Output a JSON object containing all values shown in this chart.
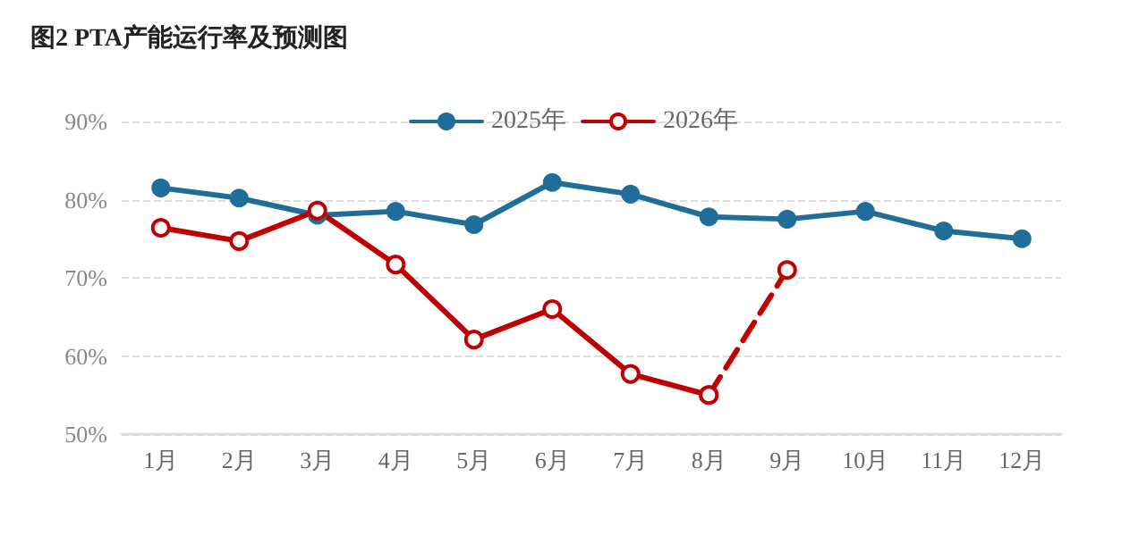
{
  "chart_data": {
    "type": "line",
    "title": "图2 PTA产能运行率及预测图",
    "categories": [
      "1月",
      "2月",
      "3月",
      "4月",
      "5月",
      "6月",
      "7月",
      "8月",
      "9月",
      "10月",
      "11月",
      "12月"
    ],
    "series": [
      {
        "name": "2025年",
        "color": "#1f6e99",
        "marker": "circle",
        "values": [
          81.5,
          80.2,
          78,
          78.5,
          76.8,
          82.2,
          80.7,
          77.8,
          77.5,
          78.5,
          76,
          75
        ]
      },
      {
        "name": "2026年",
        "color": "#c00000",
        "marker": "circle",
        "values": [
          76.4,
          74.7,
          78.6,
          71.7,
          62.1,
          66,
          57.7,
          55,
          null,
          null,
          null,
          null
        ]
      },
      {
        "color": "#c10000",
        "marker": "circle",
        "line_style": "dashed",
        "values": [
          null,
          null,
          null,
          null,
          null,
          null,
          null,
          55,
          71,
          null,
          null,
          null
        ]
      }
    ],
    "ylim": [
      50,
      90
    ],
    "yticks": [
      {
        "value": 50,
        "label": "50%"
      },
      {
        "value": 60,
        "label": "60%"
      },
      {
        "value": 70,
        "label": "70%"
      },
      {
        "value": 80,
        "label": "80%"
      },
      {
        "value": 90,
        "label": "90%"
      }
    ],
    "grid": "y",
    "legend": "top",
    "line_style": "solid"
  }
}
